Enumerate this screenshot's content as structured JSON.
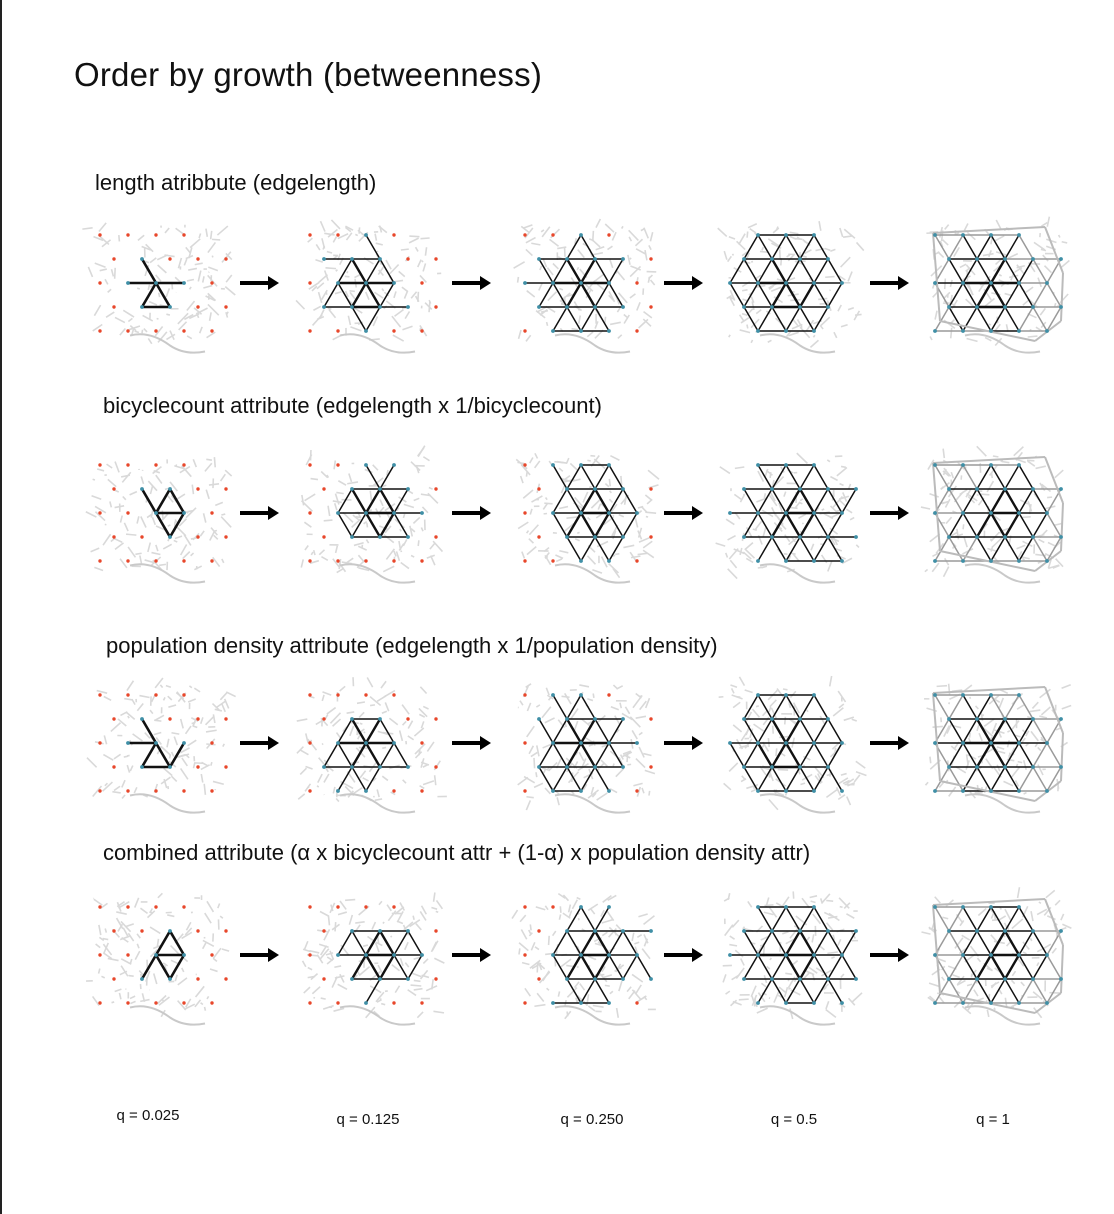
{
  "figure": {
    "title": "Order by growth (betweenness)",
    "rows": [
      {
        "label": "length atribbute (edgelength)"
      },
      {
        "label": "bicyclecount attribute (edgelength x 1/bicyclecount)"
      },
      {
        "label": "population density attribute (edgelength x 1/population density)"
      },
      {
        "label": "combined attribute (α x bicyclecount attr  + (1-α) x population density attr)"
      }
    ],
    "q_labels": [
      "q = 0.025",
      "q = 0.125",
      "q = 0.250",
      "q = 0.5",
      "q = 1"
    ],
    "colors": {
      "background_network": "#d9d9d9",
      "seed_point": "#e8472b",
      "built_node": "#3f8fa6",
      "edge": "#111111",
      "faint_edge": "#9a9a9a",
      "arrow": "#000000"
    }
  }
}
